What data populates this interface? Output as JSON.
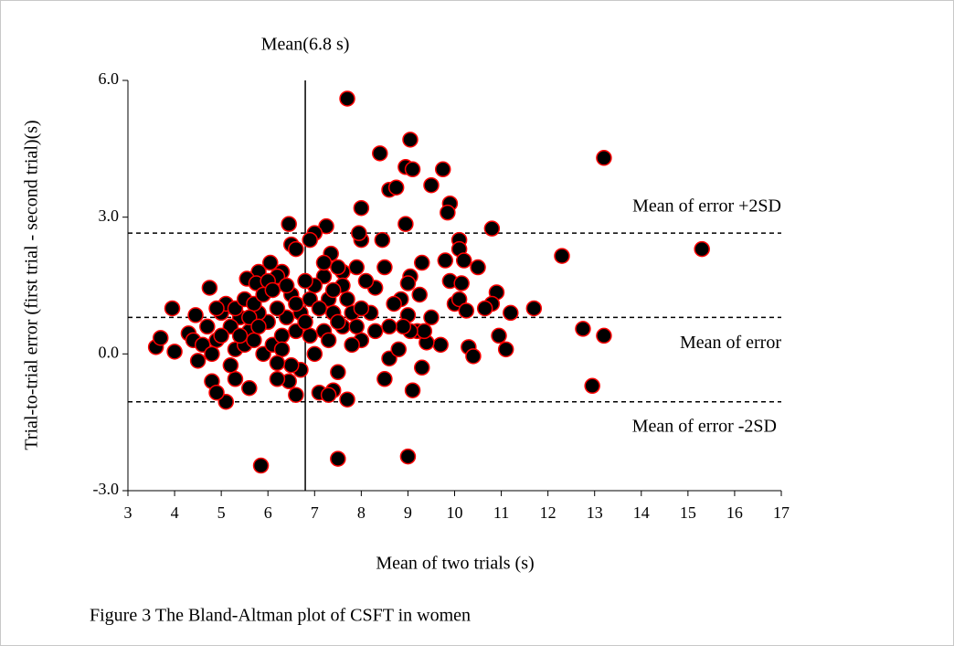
{
  "chart_data": {
    "type": "scatter",
    "caption": "Figure 3 The Bland-Altman plot of CSFT in women",
    "xlabel": "Mean of two trials (s)",
    "ylabel": "Trial-to-trial error (first trial - second trial)(s)",
    "color": "#000000",
    "edgecolor": "#ff0000",
    "xlim": [
      3,
      17
    ],
    "xticks": [
      3,
      4,
      5,
      6,
      7,
      8,
      9,
      10,
      11,
      12,
      13,
      14,
      15,
      16,
      17
    ],
    "ylim": [
      -3,
      6
    ],
    "yticks": [
      {
        "value": -3,
        "label": "-3.0"
      },
      {
        "value": 0,
        "label": "0.0"
      },
      {
        "value": 3,
        "label": "3.0"
      },
      {
        "value": 6,
        "label": "6.0"
      }
    ],
    "vline": {
      "x": 6.8,
      "label": "Mean(6.8 s)"
    },
    "hlines": [
      {
        "y": 2.65,
        "label": "Mean of error +2SD"
      },
      {
        "y": 0.8,
        "label": "Mean of error"
      },
      {
        "y": -1.05,
        "label": "Mean of error -2SD"
      }
    ],
    "x": [
      13.2,
      15.3,
      7.7,
      8.4,
      9.05,
      8.95,
      9.1,
      9.75,
      8.6,
      8.75,
      9.5,
      9.9,
      9.85,
      8.0,
      8.95,
      6.45,
      7.25,
      7.0,
      6.5,
      7.35,
      10.8,
      12.3,
      10.1,
      10.1,
      10.2,
      9.8,
      9.9,
      10.5,
      10.15,
      9.3,
      9.05,
      9.0,
      11.7,
      11.2,
      10.9,
      10.8,
      10.95,
      11.1,
      10.3,
      10.4,
      12.75,
      13.2,
      12.95,
      10.0,
      10.1,
      10.25,
      10.65,
      9.7,
      9.4,
      9.3,
      9.1,
      9.2,
      9.35,
      9.5,
      9.0,
      9.05,
      9.25,
      8.5,
      8.6,
      8.9,
      8.85,
      8.45,
      8.5,
      8.3,
      8.7,
      8.6,
      8.2,
      8.0,
      7.95,
      8.1,
      7.9,
      8.0,
      7.8,
      7.5,
      7.4,
      7.7,
      7.1,
      7.3,
      6.7,
      6.6,
      6.45,
      6.5,
      6.2,
      7.5,
      9.0,
      5.85,
      5.1,
      4.8,
      4.9,
      4.5,
      3.6,
      3.7,
      3.95,
      4.0,
      4.3,
      4.4,
      4.45,
      4.75,
      5.6,
      5.3,
      5.2,
      6.3,
      6.2,
      5.8,
      5.55,
      5.75,
      6.05,
      6.0,
      6.6,
      7.6,
      7.6,
      7.5,
      7.2,
      7.3,
      7.0,
      6.8,
      6.9,
      7.1,
      7.4,
      7.6,
      7.8,
      7.7,
      8.0,
      7.2,
      6.9,
      7.0,
      6.6,
      6.4,
      6.2,
      6.0,
      5.8,
      5.6,
      5.4,
      5.2,
      5.0,
      4.9,
      4.7,
      4.6,
      5.3,
      5.5,
      5.7,
      5.9,
      6.1,
      6.3,
      6.5,
      6.7,
      6.3,
      5.1,
      5.3,
      5.5,
      5.7,
      5.9,
      6.1,
      6.4,
      4.8,
      5.0,
      5.6,
      6.8,
      7.3,
      7.9,
      8.3,
      8.8,
      7.5,
      6.2,
      5.4,
      4.9,
      5.8,
      6.6,
      7.2,
      6.9,
      7.4
    ],
    "values": [
      4.3,
      2.3,
      5.6,
      4.4,
      4.7,
      4.1,
      4.05,
      4.05,
      3.6,
      3.65,
      3.7,
      3.3,
      3.1,
      3.2,
      2.85,
      2.85,
      2.8,
      2.65,
      2.4,
      2.2,
      2.75,
      2.15,
      2.5,
      2.3,
      2.05,
      2.05,
      1.6,
      1.9,
      1.55,
      2.0,
      1.7,
      1.55,
      1.0,
      0.9,
      1.35,
      1.1,
      0.4,
      0.1,
      0.15,
      -0.05,
      0.55,
      0.4,
      -0.7,
      1.1,
      1.2,
      0.95,
      1.0,
      0.2,
      0.25,
      -0.3,
      -0.8,
      0.5,
      0.5,
      0.8,
      0.85,
      0.5,
      1.3,
      -0.55,
      -0.1,
      0.6,
      1.2,
      2.5,
      1.9,
      1.45,
      1.1,
      0.6,
      0.9,
      2.5,
      2.65,
      1.6,
      1.9,
      0.3,
      0.2,
      -0.4,
      -0.8,
      -1.0,
      -0.85,
      -0.9,
      -0.35,
      -0.9,
      -0.6,
      -0.25,
      -0.55,
      -2.3,
      -2.25,
      -2.45,
      -1.05,
      -0.6,
      -0.85,
      -0.15,
      0.15,
      0.35,
      1.0,
      0.05,
      0.45,
      0.3,
      0.85,
      1.45,
      -0.75,
      -0.55,
      -0.25,
      1.8,
      1.7,
      1.8,
      1.65,
      1.55,
      2.0,
      1.6,
      2.3,
      1.8,
      1.5,
      1.9,
      1.7,
      1.2,
      1.5,
      1.6,
      1.2,
      1.0,
      0.9,
      0.6,
      0.9,
      1.2,
      1.0,
      0.5,
      0.4,
      0.0,
      0.5,
      0.8,
      1.0,
      0.7,
      0.9,
      0.5,
      0.8,
      0.6,
      0.9,
      0.3,
      0.6,
      0.2,
      0.1,
      0.2,
      0.3,
      0.0,
      0.2,
      0.4,
      1.3,
      0.9,
      0.1,
      1.1,
      1.0,
      1.2,
      1.1,
      1.3,
      1.4,
      1.5,
      0.0,
      0.4,
      0.8,
      0.7,
      0.3,
      0.6,
      0.5,
      0.1,
      0.7,
      -0.2,
      0.4,
      1.0,
      0.6,
      1.1,
      2.0,
      2.5,
      1.4
    ]
  }
}
